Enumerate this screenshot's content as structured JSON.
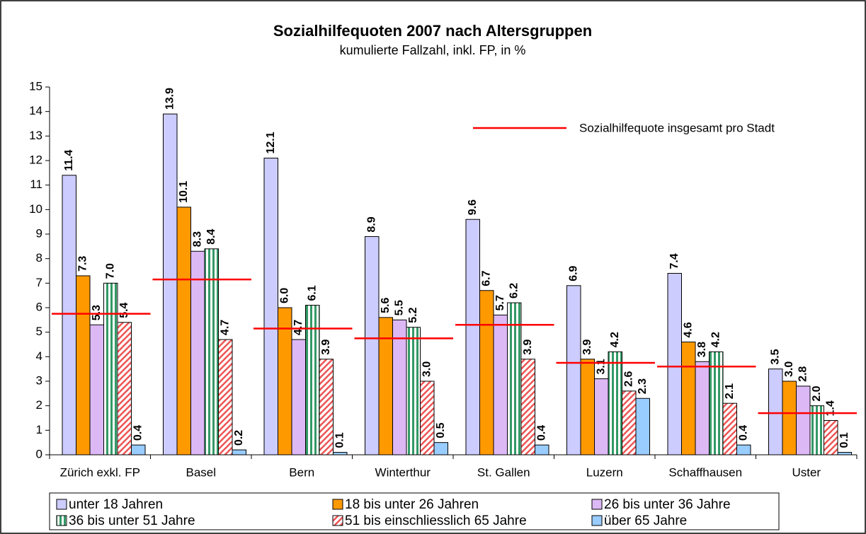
{
  "chart_data": {
    "type": "bar",
    "title": "Sozialhilfequoten 2007 nach Altersgruppen",
    "subtitle": "kumulierte Fallzahl, inkl. FP, in %",
    "categories": [
      "Zürich exkl. FP",
      "Basel",
      "Bern",
      "Winterthur",
      "St. Gallen",
      "Luzern",
      "Schaffhausen",
      "Uster"
    ],
    "series": [
      {
        "name": "unter 18 Jahren",
        "color": "#ccccff",
        "values": [
          11.4,
          13.9,
          12.1,
          8.9,
          9.6,
          6.9,
          7.4,
          3.5
        ],
        "value_labels": [
          "11.4",
          "13.9",
          "12.1",
          "8.9",
          "9.6",
          "6.9",
          "7.4",
          "3.5"
        ]
      },
      {
        "name": "18 bis unter 26 Jahren",
        "color": "#ff9900",
        "values": [
          7.3,
          10.1,
          6.0,
          5.6,
          6.7,
          3.9,
          4.6,
          3.0
        ],
        "value_labels": [
          "7.3",
          "10.1",
          "6.0",
          "5.6",
          "6.7",
          "3.9",
          "4.6",
          "3.0"
        ]
      },
      {
        "name": "26 bis unter 36 Jahre",
        "color": "#dcb8f5",
        "values": [
          5.3,
          8.3,
          4.7,
          5.5,
          5.7,
          3.1,
          3.8,
          2.8
        ],
        "value_labels": [
          "5.3",
          "8.3",
          "4.7",
          "5.5",
          "5.7",
          "3.1",
          "3.8",
          "2.8"
        ]
      },
      {
        "name": "36 bis unter 51 Jahre",
        "color": "#339966",
        "pattern": "vertical",
        "values": [
          7.0,
          8.4,
          6.1,
          5.2,
          6.2,
          4.2,
          4.2,
          2.0
        ],
        "value_labels": [
          "7.0",
          "8.4",
          "6.1",
          "5.2",
          "6.2",
          "4.2",
          "4.2",
          "2.0"
        ]
      },
      {
        "name": "51 bis einschliesslich 65 Jahre",
        "color": "#ee5555",
        "pattern": "diagonal",
        "values": [
          5.4,
          4.7,
          3.9,
          3.0,
          3.9,
          2.6,
          2.1,
          1.4
        ],
        "value_labels": [
          "5.4",
          "4.7",
          "3.9",
          "3.0",
          "3.9",
          "2.6",
          "2.1",
          "1.4"
        ]
      },
      {
        "name": "über 65 Jahre",
        "color": "#99ccff",
        "values": [
          0.4,
          0.2,
          0.1,
          0.5,
          0.4,
          2.3,
          0.4,
          0.1
        ],
        "value_labels": [
          "0.4",
          "0.2",
          "0.1",
          "0.5",
          "0.4",
          "2.3",
          "0.4",
          "0.1"
        ]
      }
    ],
    "overall": {
      "name": "Sozialhilfequote insgesamt pro Stadt",
      "color": "#ff0000",
      "values": [
        5.75,
        7.15,
        5.15,
        4.75,
        5.3,
        3.75,
        3.6,
        1.7
      ]
    },
    "ylim": [
      0,
      15
    ],
    "yticks": [
      0,
      1,
      2,
      3,
      4,
      5,
      6,
      7,
      8,
      9,
      10,
      11,
      12,
      13,
      14,
      15
    ],
    "grid": false
  }
}
